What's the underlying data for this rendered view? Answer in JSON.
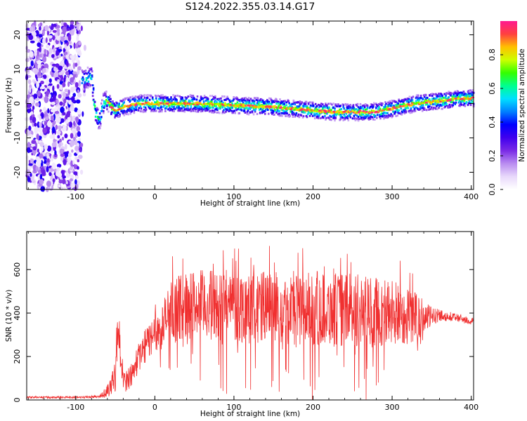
{
  "figure": {
    "title": "S124.2022.355.03.14.G17"
  },
  "chart_data": [
    {
      "type": "heatmap",
      "xlabel": "Height of straight line (km)",
      "ylabel": "Frequency (Hz)",
      "xlim": [
        -162,
        403
      ],
      "ylim": [
        -25,
        24
      ],
      "xticks": [
        -100,
        0,
        100,
        200,
        300,
        400
      ],
      "yticks": [
        -20,
        -10,
        0,
        10,
        20
      ],
      "grid": false,
      "colorbar": {
        "label": "Normalized spectral amplitude",
        "range": [
          0,
          1
        ],
        "ticks": [
          "0.0",
          "0.2",
          "0.4",
          "0.6",
          "0.8"
        ],
        "colormap": [
          "#ffffff",
          "#e8d8fb",
          "#b98cf0",
          "#7a2ae6",
          "#4000ee",
          "#0000ff",
          "#0080ff",
          "#00e0ff",
          "#00ff90",
          "#33ff00",
          "#ccff00",
          "#ffc000",
          "#ff4040",
          "#ff1a90"
        ]
      },
      "ridge": {
        "x": [
          -90,
          -80,
          -75,
          -70,
          -65,
          -60,
          -55,
          -50,
          -40,
          -20,
          0,
          50,
          100,
          150,
          200,
          230,
          250,
          270,
          290,
          310,
          330,
          350,
          370,
          390,
          403
        ],
        "freq": [
          7,
          8,
          -3,
          -5,
          0,
          1,
          -1,
          -2,
          -1,
          0,
          0,
          0,
          -0.5,
          -1,
          -2,
          -2.5,
          -2.5,
          -2.5,
          -2,
          -1,
          0,
          0.5,
          1,
          1.5,
          1.5
        ]
      }
    },
    {
      "type": "line",
      "xlabel": "Height of straight line (km)",
      "ylabel": "SNR (10 * v/v)",
      "xlim": [
        -162,
        403
      ],
      "ylim": [
        0,
        775
      ],
      "xticks": [
        -100,
        0,
        100,
        200,
        300,
        400
      ],
      "yticks": [
        0,
        200,
        400,
        600
      ],
      "grid": false,
      "color": "#f03030",
      "series_envelope": {
        "x": [
          -162,
          -100,
          -70,
          -60,
          -50,
          -47,
          -43,
          -40,
          -30,
          -20,
          -10,
          0,
          10,
          20,
          50,
          100,
          150,
          200,
          250,
          300,
          330,
          345,
          360,
          380,
          403
        ],
        "mean": [
          12,
          12,
          15,
          40,
          120,
          330,
          230,
          80,
          110,
          200,
          260,
          310,
          340,
          420,
          440,
          430,
          420,
          420,
          410,
          400,
          380,
          380,
          390,
          380,
          360
        ],
        "spread": [
          5,
          5,
          6,
          30,
          80,
          110,
          110,
          50,
          60,
          70,
          80,
          90,
          110,
          140,
          160,
          170,
          170,
          170,
          170,
          160,
          120,
          60,
          25,
          20,
          18
        ]
      }
    }
  ]
}
